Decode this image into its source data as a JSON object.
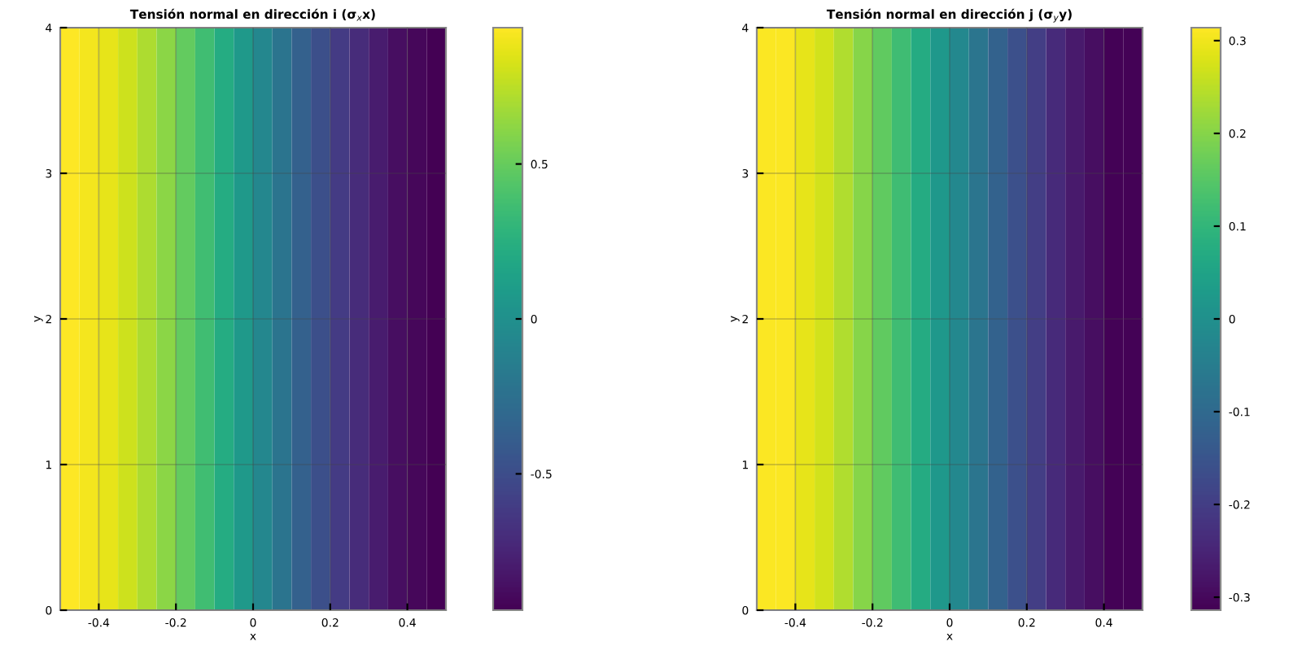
{
  "chart_data": [
    {
      "type": "heatmap",
      "title": "Tensión normal en dirección i (σ$_{x}$x)",
      "xlabel": "x",
      "ylabel": "y",
      "cells": [
        [
          0.94,
          0.91,
          0.87,
          0.8,
          0.71,
          0.61,
          0.49,
          0.36,
          0.22,
          0.07,
          -0.07,
          -0.22,
          -0.36,
          -0.49,
          -0.61,
          -0.71,
          -0.8,
          -0.87,
          -0.91,
          -0.94
        ]
      ],
      "xlim": [
        -0.5,
        0.5
      ],
      "ylim": [
        0,
        4
      ],
      "xticks": [
        -0.4,
        -0.2,
        0,
        0.2,
        0.4
      ],
      "yticks": [
        0,
        1,
        2,
        3,
        4
      ],
      "clim": [
        -0.94,
        0.94
      ],
      "cticks": [
        -0.5,
        0,
        0.5
      ],
      "grid": true
    },
    {
      "type": "heatmap",
      "title": "Tensión normal en dirección j (σ$_{y}$y)",
      "xlabel": "x",
      "ylabel": "y",
      "cells": [
        [
          0.31,
          0.31,
          0.29,
          0.27,
          0.24,
          0.2,
          0.16,
          0.12,
          0.07,
          0.02,
          -0.02,
          -0.07,
          -0.12,
          -0.16,
          -0.2,
          -0.24,
          -0.27,
          -0.29,
          -0.31,
          -0.31
        ]
      ],
      "xlim": [
        -0.5,
        0.5
      ],
      "ylim": [
        0,
        4
      ],
      "xticks": [
        -0.4,
        -0.2,
        0,
        0.2,
        0.4
      ],
      "yticks": [
        0,
        1,
        2,
        3,
        4
      ],
      "clim": [
        -0.314,
        0.314
      ],
      "cticks": [
        -0.3,
        -0.2,
        -0.1,
        0,
        0.1,
        0.2,
        0.3
      ],
      "grid": true
    }
  ]
}
